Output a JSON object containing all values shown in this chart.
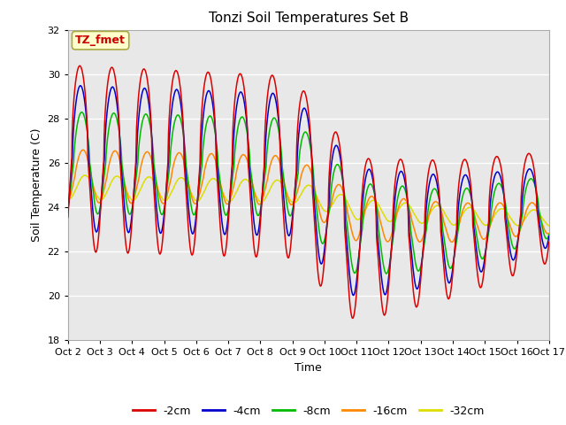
{
  "title": "Tonzi Soil Temperatures Set B",
  "xlabel": "Time",
  "ylabel": "Soil Temperature (C)",
  "ylim": [
    18,
    32
  ],
  "yticks": [
    18,
    20,
    22,
    24,
    26,
    28,
    30,
    32
  ],
  "x_labels": [
    "Oct 2",
    "Oct 3",
    "Oct 4",
    "Oct 5",
    "Oct 6",
    "Oct 7",
    "Oct 8",
    "Oct 9",
    "Oct 10",
    "Oct 11",
    "Oct 12",
    "Oct 13",
    "Oct 14",
    "Oct 15",
    "Oct 16",
    "Oct 17"
  ],
  "annotation_label": "TZ_fmet",
  "annotation_color": "#cc0000",
  "annotation_bg": "#ffffcc",
  "annotation_border": "#aaaa44",
  "colors": {
    "-2cm": "#dd0000",
    "-4cm": "#0000cc",
    "-8cm": "#00bb00",
    "-16cm": "#ff8800",
    "-32cm": "#dddd00"
  },
  "legend_labels": [
    "-2cm",
    "-4cm",
    "-8cm",
    "-16cm",
    "-32cm"
  ],
  "plot_bg": "#e8e8e8",
  "fig_bg": "#ffffff",
  "grid_color": "#ffffff"
}
